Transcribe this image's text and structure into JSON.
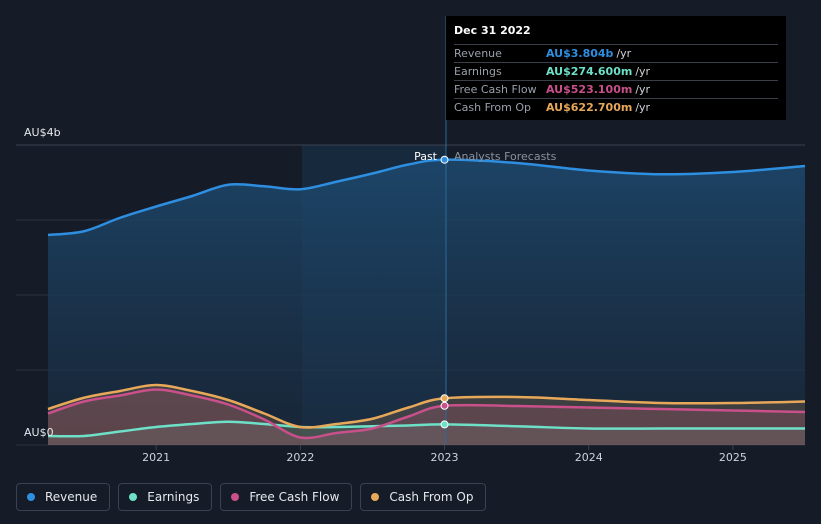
{
  "chart_data": {
    "type": "line",
    "title": "",
    "y_axis_top_label": "AU$4b",
    "y_axis_bottom_label": "AU$0",
    "ylim": [
      0,
      4
    ],
    "xlim": [
      2020.25,
      2025.5
    ],
    "x_ticks": [
      2021,
      2022,
      2023,
      2024,
      2025
    ],
    "x_tick_labels": [
      "2021",
      "2022",
      "2023",
      "2024",
      "2025"
    ],
    "past_label": "Past",
    "forecast_label": "Analysts Forecasts",
    "divider_x": 2023.0,
    "series": [
      {
        "name": "Revenue",
        "color": "#2e8ee0",
        "x": [
          2020.25,
          2020.5,
          2020.75,
          2021.0,
          2021.25,
          2021.5,
          2021.75,
          2022.0,
          2022.25,
          2022.5,
          2022.75,
          2023.0,
          2023.5,
          2024.0,
          2024.5,
          2025.0,
          2025.5
        ],
        "values": [
          2.8,
          2.85,
          3.03,
          3.18,
          3.32,
          3.47,
          3.45,
          3.41,
          3.51,
          3.62,
          3.74,
          3.804,
          3.76,
          3.66,
          3.61,
          3.64,
          3.72
        ]
      },
      {
        "name": "Earnings",
        "color": "#6ee0c8",
        "x": [
          2020.25,
          2020.5,
          2020.75,
          2021.0,
          2021.25,
          2021.5,
          2021.75,
          2022.0,
          2022.25,
          2022.5,
          2022.75,
          2023.0,
          2023.5,
          2024.0,
          2024.5,
          2025.0,
          2025.5
        ],
        "values": [
          0.12,
          0.12,
          0.18,
          0.24,
          0.28,
          0.31,
          0.28,
          0.24,
          0.24,
          0.25,
          0.26,
          0.2746,
          0.25,
          0.22,
          0.22,
          0.22,
          0.22
        ]
      },
      {
        "name": "Free Cash Flow",
        "color": "#c9508a",
        "x": [
          2020.25,
          2020.5,
          2020.75,
          2021.0,
          2021.25,
          2021.5,
          2021.75,
          2022.0,
          2022.25,
          2022.5,
          2022.75,
          2023.0,
          2023.5,
          2024.0,
          2024.5,
          2025.0,
          2025.5
        ],
        "values": [
          0.42,
          0.58,
          0.66,
          0.74,
          0.66,
          0.54,
          0.34,
          0.1,
          0.16,
          0.22,
          0.38,
          0.5231,
          0.52,
          0.5,
          0.48,
          0.46,
          0.44
        ]
      },
      {
        "name": "Cash From Op",
        "color": "#e8a85a",
        "x": [
          2020.25,
          2020.5,
          2020.75,
          2021.0,
          2021.25,
          2021.5,
          2021.75,
          2022.0,
          2022.25,
          2022.5,
          2022.75,
          2023.0,
          2023.5,
          2024.0,
          2024.5,
          2025.0,
          2025.5
        ],
        "values": [
          0.48,
          0.63,
          0.72,
          0.8,
          0.72,
          0.6,
          0.42,
          0.24,
          0.28,
          0.35,
          0.5,
          0.6227,
          0.64,
          0.6,
          0.56,
          0.56,
          0.58
        ]
      }
    ]
  },
  "tooltip": {
    "date": "Dec 31 2022",
    "rows": [
      {
        "label": "Revenue",
        "value": "AU$3.804b",
        "unit": "/yr",
        "color": "#2e8ee0"
      },
      {
        "label": "Earnings",
        "value": "AU$274.600m",
        "unit": "/yr",
        "color": "#6ee0c8"
      },
      {
        "label": "Free Cash Flow",
        "value": "AU$523.100m",
        "unit": "/yr",
        "color": "#c9508a"
      },
      {
        "label": "Cash From Op",
        "value": "AU$622.700m",
        "unit": "/yr",
        "color": "#e8a85a"
      }
    ]
  },
  "legend": [
    {
      "label": "Revenue",
      "color": "#2e8ee0"
    },
    {
      "label": "Earnings",
      "color": "#6ee0c8"
    },
    {
      "label": "Free Cash Flow",
      "color": "#c9508a"
    },
    {
      "label": "Cash From Op",
      "color": "#e8a85a"
    }
  ]
}
